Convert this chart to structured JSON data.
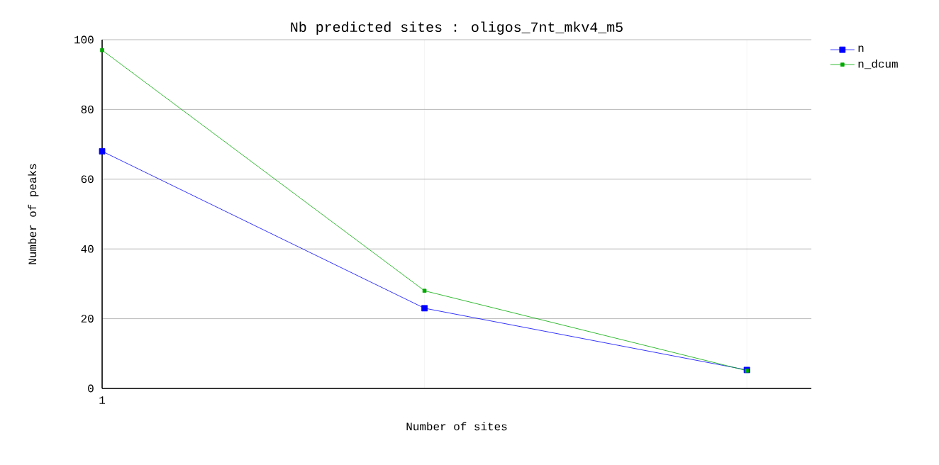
{
  "chart_data": {
    "type": "line",
    "title": "Nb predicted sites : oligos_7nt_mkv4_m5",
    "xlabel": "Number of sites",
    "ylabel": "Number of peaks",
    "categories": [
      "1",
      null,
      null
    ],
    "series": [
      {
        "name": "n",
        "color": "#0000ff",
        "values": [
          68,
          23,
          5.3
        ]
      },
      {
        "name": "n_dcum",
        "color": "#00aa00",
        "values": [
          97,
          28,
          5.1
        ]
      }
    ],
    "ylim": [
      0,
      100
    ],
    "yticks": [
      0,
      20,
      40,
      60,
      80,
      100
    ],
    "grid": true,
    "legend": "top right",
    "marker": "square",
    "line_style": "solid"
  }
}
